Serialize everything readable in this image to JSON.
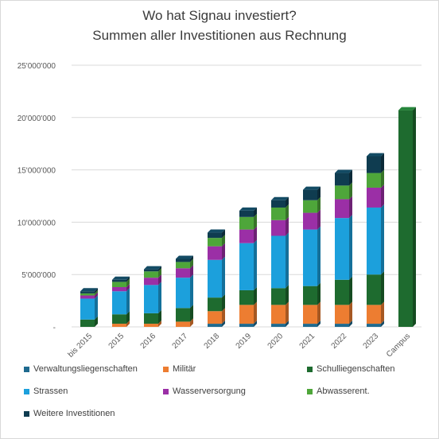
{
  "chart_data": {
    "type": "bar",
    "stacked": true,
    "title": "Wo hat Signau investiert?",
    "subtitle": "Summen aller Investitionen aus Rechnung",
    "categories": [
      "bis 2015",
      "2015",
      "2016",
      "2017",
      "2018",
      "2019",
      "2020",
      "2021",
      "2022",
      "2023",
      "Campus"
    ],
    "ylim": [
      0,
      25000000
    ],
    "yticks": [
      "-",
      "5'000'000",
      "10'000'000",
      "15'000'000",
      "20'000'000",
      "25'000'000"
    ],
    "grid": true,
    "legend_position": "bottom",
    "series": [
      {
        "name": "Verwaltungsliegenschaften",
        "color": "#1f6a8f",
        "values": [
          0,
          0,
          0,
          0,
          300000,
          300000,
          300000,
          300000,
          300000,
          300000,
          0
        ]
      },
      {
        "name": "Militär",
        "color": "#ed7d31",
        "values": [
          0,
          300000,
          300000,
          500000,
          1200000,
          1800000,
          1800000,
          1800000,
          1800000,
          1800000,
          0
        ]
      },
      {
        "name": "Schulliegenschaften",
        "color": "#1e6b2f",
        "values": [
          700000,
          900000,
          1000000,
          1300000,
          1300000,
          1400000,
          1600000,
          1800000,
          2400000,
          2900000,
          20700000
        ]
      },
      {
        "name": "Strassen",
        "color": "#1ca0dc",
        "values": [
          2000000,
          2200000,
          2700000,
          2900000,
          3600000,
          4500000,
          5000000,
          5400000,
          5900000,
          6400000,
          0
        ]
      },
      {
        "name": "Wasserversorgung",
        "color": "#9b2fa6",
        "values": [
          300000,
          400000,
          700000,
          900000,
          1300000,
          1300000,
          1500000,
          1600000,
          1800000,
          1900000,
          0
        ]
      },
      {
        "name": "Abwasserent.",
        "color": "#4ea63a",
        "values": [
          200000,
          500000,
          600000,
          600000,
          800000,
          1200000,
          1200000,
          1200000,
          1300000,
          1400000,
          0
        ]
      },
      {
        "name": "Weitere Investitionen",
        "color": "#0f3c50",
        "values": [
          200000,
          200000,
          200000,
          300000,
          500000,
          600000,
          700000,
          1000000,
          1200000,
          1600000,
          0
        ]
      }
    ]
  }
}
